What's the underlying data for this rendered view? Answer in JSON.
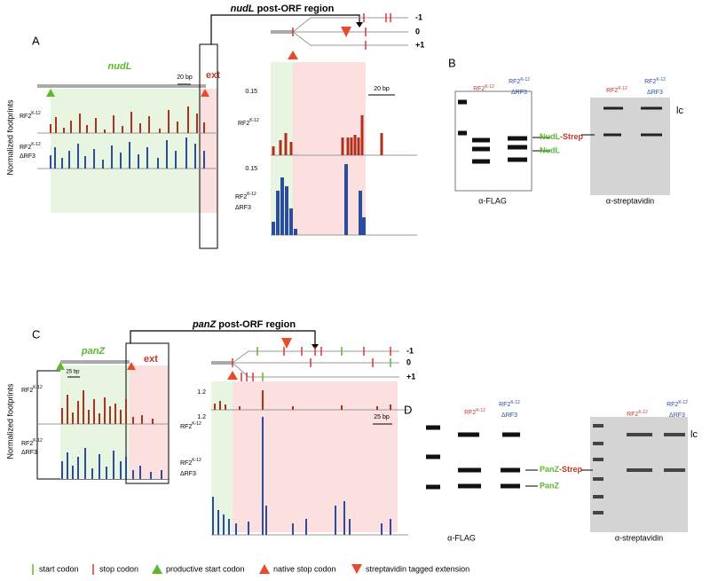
{
  "y_axis_label": "Normalized footprints",
  "samples": {
    "wt": {
      "base": "RF2",
      "sup": "K-12"
    },
    "drf3": "ΔRF3"
  },
  "panels": [
    {
      "label": "A",
      "gene": "nudL",
      "region_title": {
        "gene": "nudL",
        "text": "post-ORF region"
      },
      "ext": "ext",
      "scale_overview": "20 bp",
      "scale_zoom": "20 bp",
      "frames": [
        "-1",
        "0",
        "+1"
      ],
      "yticks_top": [
        0.15
      ],
      "yticks_bottom": [
        0.15
      ]
    },
    {
      "label": "B",
      "blot_left": "α-FLAG",
      "blot_right": "α-streptavidin",
      "loading_control": "lc",
      "band_upper": {
        "name": "NudL",
        "tag": "-Strep"
      },
      "band_lower": "NudL"
    },
    {
      "label": "C",
      "gene": "panZ",
      "region_title": {
        "gene": "panZ",
        "text": "post-ORF  region"
      },
      "ext": "ext",
      "scale_overview": "25 bp",
      "scale_zoom": "25 bp",
      "frames": [
        "-1",
        "0",
        "+1"
      ],
      "yticks_top": [
        1.2
      ],
      "yticks_bottom": [
        1.2
      ]
    },
    {
      "label": "D",
      "blot_left": "α-FLAG",
      "blot_right": "α-streptavidin",
      "loading_control": "lc",
      "band_upper": {
        "name": "PanZ",
        "tag": "-Strep"
      },
      "band_lower": "PanZ"
    }
  ],
  "legend": [
    "start codon",
    "stop codon",
    "productive start codon",
    "native stop codon",
    "streptavidin tagged extension"
  ]
}
